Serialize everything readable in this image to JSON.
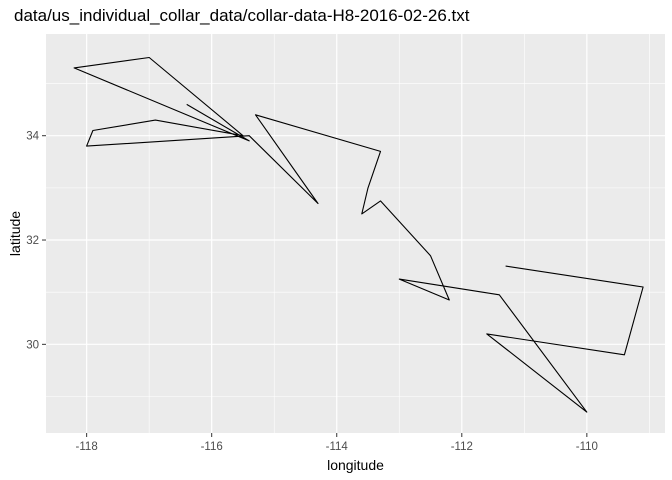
{
  "chart_data": {
    "type": "line",
    "title": "data/us_individual_collar_data/collar-data-H8-2016-02-26.txt",
    "xlabel": "longitude",
    "ylabel": "latitude",
    "xlim": [
      -118.65,
      -108.75
    ],
    "ylim": [
      28.3,
      35.95
    ],
    "x_ticks": [
      -118,
      -116,
      -114,
      -112,
      -110
    ],
    "x_tick_labels": [
      "-118",
      "-116",
      "-114",
      "-112",
      "-110"
    ],
    "y_ticks": [
      30,
      32,
      34
    ],
    "y_tick_labels": [
      "30",
      "32",
      "34"
    ],
    "grid": true,
    "panel_background": "#ebebeb",
    "grid_color": "#ffffff",
    "line_color": "#000000",
    "series": [
      {
        "x": [
          -116.4,
          -115.4,
          -118.2,
          -117.0,
          -115.5,
          -116.9,
          -117.9,
          -118.0,
          -115.4,
          -114.3,
          -115.3,
          -113.3,
          -113.5,
          -113.6,
          -113.3,
          -112.5,
          -112.2,
          -113.0,
          -111.4,
          -110.0,
          -111.6,
          -109.4,
          -109.1,
          -111.3
        ],
        "y": [
          34.6,
          33.9,
          35.3,
          35.5,
          34.0,
          34.3,
          34.1,
          33.8,
          34.0,
          32.7,
          34.4,
          33.7,
          33.0,
          32.5,
          32.75,
          31.7,
          30.85,
          31.25,
          30.95,
          28.7,
          30.2,
          29.8,
          31.1,
          31.5
        ]
      }
    ]
  }
}
